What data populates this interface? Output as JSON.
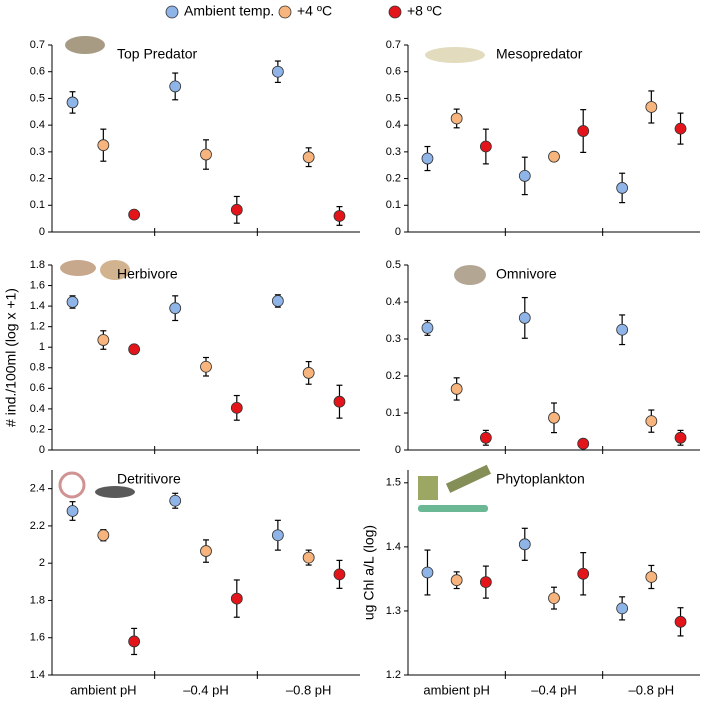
{
  "chart_data": [
    {
      "type": "dot",
      "title": "Top Predator",
      "ylim": [
        0,
        0.7
      ],
      "yticks": [
        0,
        0.1,
        0.2,
        0.3,
        0.4,
        0.5,
        0.6,
        0.7
      ],
      "series": [
        {
          "name": "Ambient temp.",
          "color": "#8eb4e8",
          "values": [
            0.485,
            0.545,
            0.6
          ],
          "errors": [
            0.04,
            0.05,
            0.04
          ]
        },
        {
          "name": "+4 ºC",
          "color": "#f7b47c",
          "values": [
            0.325,
            0.29,
            0.28
          ],
          "errors": [
            0.06,
            0.055,
            0.035
          ]
        },
        {
          "name": "+8 ºC",
          "color": "#e3151b",
          "values": [
            0.065,
            0.083,
            0.06
          ],
          "errors": [
            0.005,
            0.05,
            0.035
          ]
        }
      ]
    },
    {
      "type": "dot",
      "title": "Mesopredator",
      "ylim": [
        0,
        0.7
      ],
      "yticks": [
        0,
        0.1,
        0.2,
        0.3,
        0.4,
        0.5,
        0.6,
        0.7
      ],
      "series": [
        {
          "color": "#8eb4e8",
          "values": [
            0.275,
            0.21,
            0.165
          ],
          "errors": [
            0.045,
            0.07,
            0.055
          ]
        },
        {
          "color": "#f7b47c",
          "values": [
            0.425,
            0.282,
            0.468
          ],
          "errors": [
            0.035,
            0.015,
            0.06
          ]
        },
        {
          "color": "#e3151b",
          "values": [
            0.32,
            0.378,
            0.387
          ],
          "errors": [
            0.065,
            0.08,
            0.058
          ]
        }
      ]
    },
    {
      "type": "dot",
      "title": "Herbivore",
      "ylabel": "# ind./100ml (log x +1)",
      "ylim": [
        0,
        1.8
      ],
      "yticks": [
        0,
        0.2,
        0.4,
        0.6,
        0.8,
        1,
        1.2,
        1.4,
        1.6,
        1.8
      ],
      "series": [
        {
          "color": "#8eb4e8",
          "values": [
            1.44,
            1.38,
            1.45
          ],
          "errors": [
            0.06,
            0.12,
            0.06
          ]
        },
        {
          "color": "#f7b47c",
          "values": [
            1.07,
            0.81,
            0.75
          ],
          "errors": [
            0.09,
            0.09,
            0.11
          ]
        },
        {
          "color": "#e3151b",
          "values": [
            0.98,
            0.41,
            0.47
          ],
          "errors": [
            0.04,
            0.12,
            0.16
          ]
        }
      ]
    },
    {
      "type": "dot",
      "title": "Omnivore",
      "ylim": [
        0,
        0.5
      ],
      "yticks": [
        0,
        0.1,
        0.2,
        0.3,
        0.4,
        0.5
      ],
      "series": [
        {
          "color": "#8eb4e8",
          "values": [
            0.33,
            0.357,
            0.325
          ],
          "errors": [
            0.02,
            0.055,
            0.04
          ]
        },
        {
          "color": "#f7b47c",
          "values": [
            0.165,
            0.087,
            0.078
          ],
          "errors": [
            0.03,
            0.04,
            0.03
          ]
        },
        {
          "color": "#e3151b",
          "values": [
            0.033,
            0.017,
            0.033
          ],
          "errors": [
            0.02,
            0.005,
            0.02
          ]
        }
      ]
    },
    {
      "type": "dot",
      "title": "Detritivore",
      "ylim": [
        1.4,
        2.5
      ],
      "yticks": [
        1.4,
        1.6,
        1.8,
        2,
        2.2,
        2.4
      ],
      "categories": [
        "ambient pH",
        "–0.4 pH",
        "–0.8 pH"
      ],
      "series": [
        {
          "color": "#8eb4e8",
          "values": [
            2.28,
            2.335,
            2.15
          ],
          "errors": [
            0.05,
            0.04,
            0.08
          ]
        },
        {
          "color": "#f7b47c",
          "values": [
            2.15,
            2.065,
            2.03
          ],
          "errors": [
            0.03,
            0.06,
            0.04
          ]
        },
        {
          "color": "#e3151b",
          "values": [
            1.58,
            1.81,
            1.94
          ],
          "errors": [
            0.07,
            0.1,
            0.075
          ]
        }
      ]
    },
    {
      "type": "dot",
      "title": "Phytoplankton",
      "ylabel": "ug Chl a/L (log)",
      "ylim": [
        1.2,
        1.52
      ],
      "yticks": [
        1.2,
        1.3,
        1.4,
        1.5
      ],
      "categories": [
        "ambient pH",
        "–0.4 pH",
        "–0.8 pH"
      ],
      "series": [
        {
          "color": "#8eb4e8",
          "values": [
            1.36,
            1.404,
            1.304
          ],
          "errors": [
            0.035,
            0.025,
            0.018
          ]
        },
        {
          "color": "#f7b47c",
          "values": [
            1.348,
            1.32,
            1.353
          ],
          "errors": [
            0.013,
            0.017,
            0.018
          ]
        },
        {
          "color": "#e3151b",
          "values": [
            1.345,
            1.358,
            1.283
          ],
          "errors": [
            0.025,
            0.033,
            0.022
          ]
        }
      ]
    }
  ]
}
